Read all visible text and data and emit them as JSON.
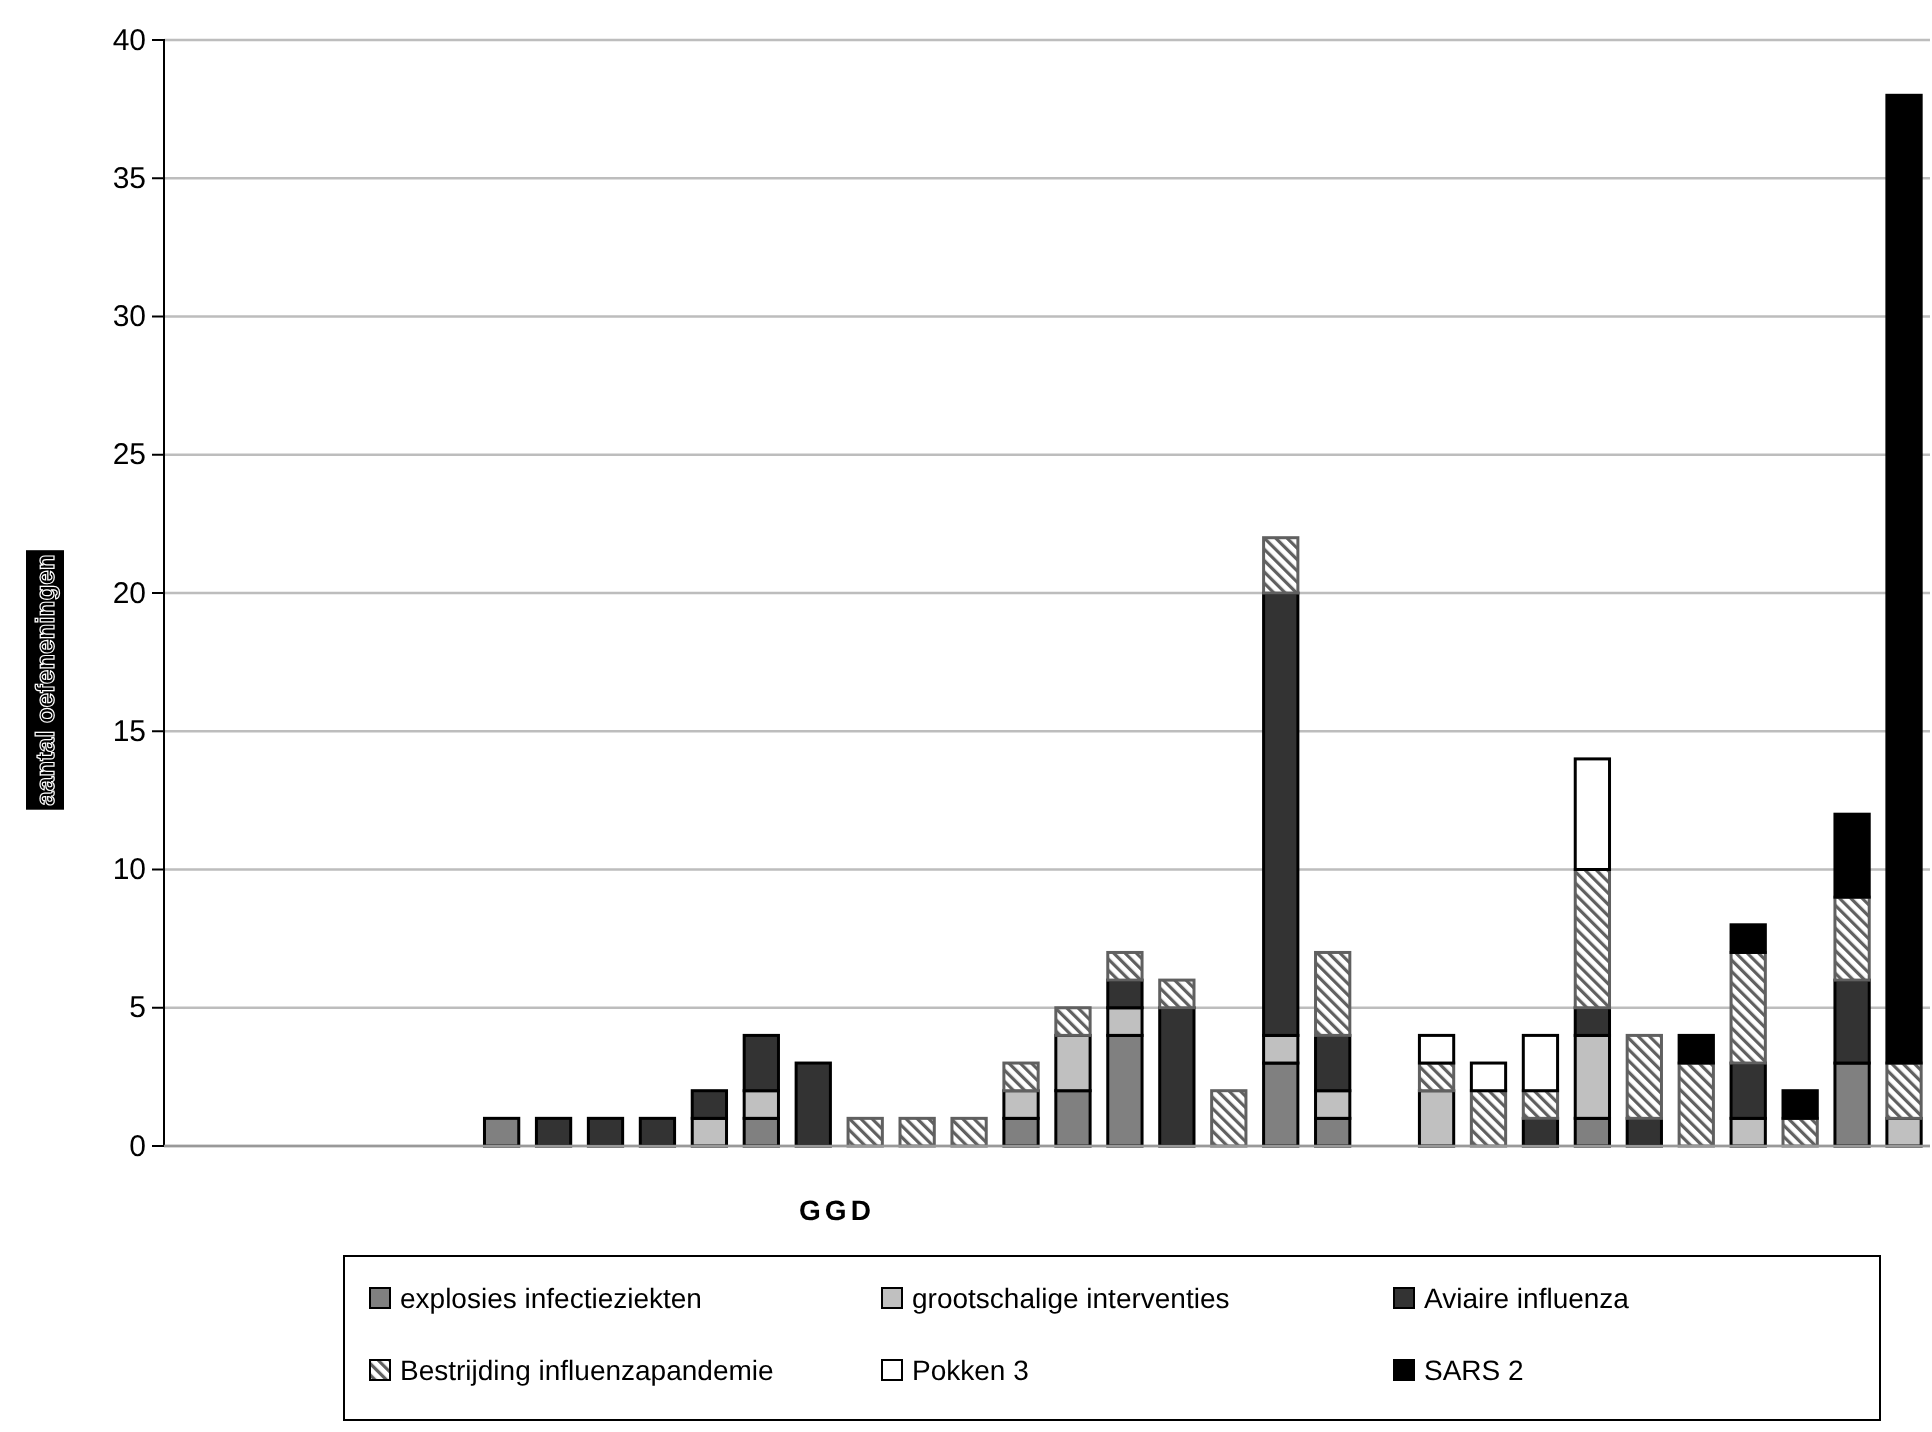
{
  "chart_data": {
    "type": "bar",
    "stacked": true,
    "xlabel": "GGD",
    "ylabel": "aantal oefeneningen",
    "categories": [
      null,
      null,
      null,
      null,
      null,
      null,
      null,
      null,
      null,
      null,
      null,
      null,
      null,
      null,
      null,
      null,
      null,
      null,
      null,
      null,
      null,
      null,
      null,
      null,
      null,
      null,
      null,
      null,
      null,
      null,
      null,
      null,
      null,
      null
    ],
    "ylim": [
      0,
      40
    ],
    "yticks": [
      0,
      5,
      10,
      15,
      20,
      25,
      30,
      35,
      40
    ],
    "grid": "y",
    "legend": "bottom",
    "series": [
      {
        "name": "explosies infectieziekten",
        "color": "#808080",
        "values": [
          null,
          null,
          null,
          null,
          null,
          null,
          1,
          null,
          null,
          null,
          null,
          1,
          null,
          null,
          null,
          null,
          1,
          2,
          4,
          null,
          null,
          3,
          1,
          null,
          null,
          null,
          null,
          1,
          null,
          null,
          null,
          null,
          3,
          null
        ]
      },
      {
        "name": "grootschalige interventies",
        "color": "#c0c0c0",
        "values": [
          null,
          null,
          null,
          null,
          null,
          null,
          null,
          null,
          null,
          null,
          1,
          1,
          null,
          null,
          null,
          null,
          1,
          2,
          1,
          null,
          null,
          1,
          1,
          null,
          2,
          null,
          null,
          3,
          null,
          null,
          1,
          null,
          null,
          1
        ]
      },
      {
        "name": "Aviaire influenza",
        "color": "#333333",
        "values": [
          null,
          null,
          null,
          null,
          null,
          null,
          null,
          1,
          1,
          1,
          1,
          2,
          3,
          null,
          null,
          null,
          null,
          null,
          1,
          5,
          null,
          16,
          2,
          null,
          null,
          null,
          1,
          1,
          1,
          null,
          2,
          null,
          3,
          null
        ]
      },
      {
        "name": "Bestrijding influenzapandemie",
        "color": "#606060",
        "values": [
          null,
          null,
          null,
          null,
          null,
          null,
          null,
          null,
          null,
          null,
          null,
          null,
          null,
          1,
          1,
          1,
          1,
          1,
          1,
          1,
          2,
          2,
          3,
          null,
          1,
          2,
          1,
          5,
          3,
          3,
          4,
          1,
          3,
          2
        ]
      },
      {
        "name": "Pokken 3",
        "color": "#ffffff",
        "values": [
          null,
          null,
          null,
          null,
          null,
          null,
          null,
          null,
          null,
          null,
          null,
          null,
          null,
          null,
          null,
          null,
          null,
          null,
          null,
          null,
          null,
          null,
          null,
          null,
          1,
          1,
          2,
          4,
          null,
          null,
          null,
          null,
          null,
          null
        ]
      },
      {
        "name": "SARS 2",
        "color": "#000000",
        "values": [
          null,
          null,
          null,
          null,
          null,
          null,
          null,
          null,
          null,
          null,
          null,
          null,
          null,
          null,
          null,
          null,
          null,
          null,
          null,
          null,
          null,
          null,
          null,
          null,
          null,
          null,
          null,
          null,
          null,
          1,
          1,
          1,
          3,
          35
        ]
      }
    ]
  }
}
